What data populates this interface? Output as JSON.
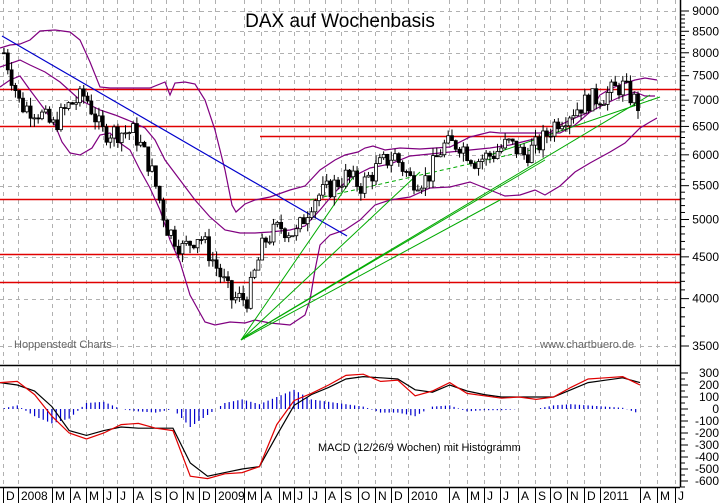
{
  "chart_data": [
    {
      "type": "candlestick",
      "title": "DAX auf Wochenbasis",
      "xlabel": "",
      "ylabel": "",
      "y_scale": "log",
      "ylim": [
        3450,
        9200
      ],
      "y_ticks": [
        3500,
        4000,
        4500,
        5000,
        5500,
        6000,
        6500,
        7000,
        7500,
        8000,
        8500,
        9000
      ],
      "grid": true,
      "x_ticks": [
        "D",
        "2008",
        "M",
        "A",
        "M",
        "J",
        "J",
        "A",
        "S",
        "O",
        "N",
        "D",
        "2009",
        "M",
        "A",
        "M",
        "J",
        "J",
        "A",
        "S",
        "O",
        "N",
        "D",
        "2010",
        "A",
        "M",
        "J",
        "J",
        "A",
        "S",
        "O",
        "N",
        "D",
        "2011",
        "A",
        "M",
        "J"
      ],
      "horizontal_lines": [
        7230,
        6500,
        6330,
        5300,
        4540,
        4190
      ],
      "horizontal_line_color": "#e00000",
      "annotations": [
        "Hoppenstedt Charts",
        "www.chartbuero.de"
      ],
      "overlays": [
        "Bollinger Bands (purple)",
        "Downtrend line (blue)",
        "Uptrend lines (green)"
      ],
      "approx_weekly_close": {
        "x": [
          "2007-12",
          "2008-01",
          "2008-02",
          "2008-03",
          "2008-04",
          "2008-05",
          "2008-06",
          "2008-07",
          "2008-08",
          "2008-09",
          "2008-10",
          "2008-11",
          "2008-12",
          "2009-01",
          "2009-02",
          "2009-03",
          "2009-04",
          "2009-05",
          "2009-06",
          "2009-07",
          "2009-08",
          "2009-09",
          "2009-10",
          "2009-11",
          "2009-12",
          "2010-01",
          "2010-02",
          "2010-03",
          "2010-04",
          "2010-05",
          "2010-06",
          "2010-07",
          "2010-08",
          "2010-09",
          "2010-10",
          "2010-11",
          "2010-12",
          "2011-01",
          "2011-02",
          "2011-03"
        ],
        "values": [
          8000,
          6900,
          6800,
          6500,
          6900,
          7100,
          6400,
          6400,
          6400,
          5800,
          4900,
          4600,
          4800,
          4400,
          4000,
          4000,
          4700,
          4900,
          4800,
          5300,
          5450,
          5650,
          5500,
          5800,
          6000,
          5600,
          5600,
          6150,
          6200,
          5900,
          6000,
          6200,
          6000,
          6200,
          6600,
          6800,
          7000,
          7100,
          7300,
          6900
        ]
      }
    },
    {
      "type": "line",
      "title": "MACD (12/26/9 Wochen) mit Histogramm",
      "ylim": [
        -650,
        320
      ],
      "y_ticks": [
        300,
        200,
        100,
        0,
        -100,
        -200,
        -300,
        -400,
        -500,
        -600
      ],
      "series": [
        {
          "name": "MACD",
          "color": "#e00000",
          "values": [
            220,
            230,
            120,
            -60,
            -200,
            -250,
            -200,
            -130,
            -120,
            -160,
            -180,
            -560,
            -580,
            -540,
            -530,
            -480,
            -130,
            70,
            130,
            200,
            280,
            290,
            230,
            240,
            110,
            150,
            220,
            130,
            110,
            90,
            100,
            80,
            100,
            180,
            250,
            260,
            270,
            200
          ]
        },
        {
          "name": "Signal",
          "color": "#000000",
          "values": [
            220,
            200,
            150,
            20,
            -180,
            -220,
            -180,
            -150,
            -160,
            -160,
            -160,
            -450,
            -560,
            -530,
            -500,
            -480,
            -220,
            30,
            120,
            180,
            250,
            270,
            260,
            250,
            160,
            140,
            200,
            150,
            120,
            100,
            100,
            100,
            100,
            160,
            220,
            240,
            260,
            220
          ]
        },
        {
          "name": "Histogram",
          "color": "#0000cc",
          "values": [
            0,
            30,
            -60,
            -120,
            -80,
            50,
            60,
            0,
            -20,
            -30,
            0,
            -150,
            -50,
            50,
            80,
            40,
            100,
            160,
            80,
            60,
            40,
            20,
            -30,
            -30,
            -60,
            20,
            30,
            -20,
            -10,
            -10,
            0,
            0,
            30,
            40,
            30,
            20,
            10,
            -40
          ]
        }
      ]
    }
  ],
  "header": {
    "title": "DAX auf Wochenbasis"
  },
  "price_axis": {
    "labels": [
      "9000",
      "8500",
      "8000",
      "7500",
      "7000",
      "6500",
      "6000",
      "5500",
      "5000",
      "4500",
      "4000",
      "3500"
    ]
  },
  "macd_axis": {
    "labels": [
      "300",
      "200",
      "100",
      "0",
      "-100",
      "-200",
      "-300",
      "-400",
      "-500",
      "-600"
    ]
  },
  "time_axis": {
    "labels": [
      "D",
      "2008",
      "M",
      "A",
      "M",
      "J",
      "J",
      "A",
      "S",
      "O",
      "N",
      "D",
      "2009",
      "M",
      "A",
      "M",
      "J",
      "J",
      "A",
      "S",
      "O",
      "N",
      "D",
      "2010",
      "A",
      "M",
      "J",
      "J",
      "A",
      "S",
      "O",
      "N",
      "D",
      "2011",
      "A",
      "M",
      "J"
    ]
  },
  "annotations": {
    "source_left": "Hoppenstedt Charts",
    "source_right": "www.chartbuero.de",
    "macd_caption": "MACD (12/26/9 Wochen) mit Histogramm"
  },
  "colors": {
    "support_lines": "#e00000",
    "bollinger": "#800080",
    "downtrend": "#0000cc",
    "uptrend": "#00aa00",
    "macd": "#e00000",
    "signal": "#000000",
    "histogram": "#0000cc",
    "grid": "#b0b0b0"
  }
}
